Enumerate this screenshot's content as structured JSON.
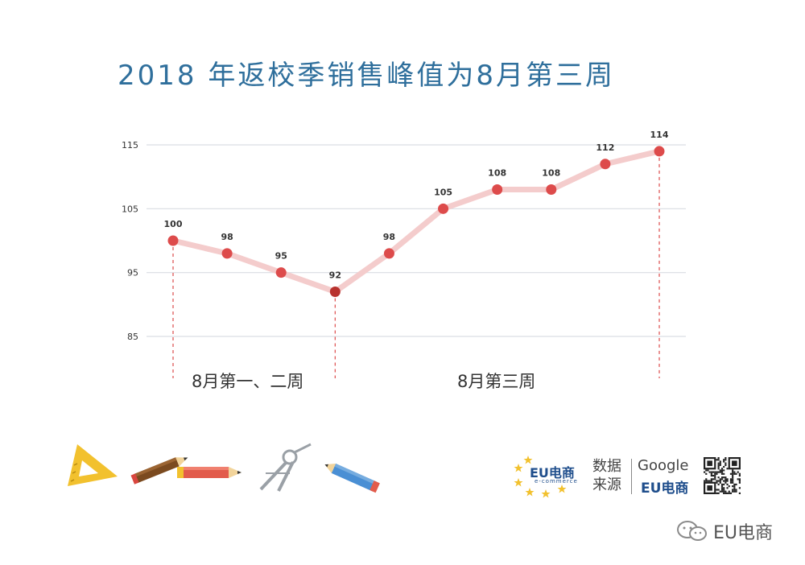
{
  "chart_data": {
    "type": "line",
    "title": "2018 年返校季销售峰值为8月第三周",
    "xlabel": "",
    "ylabel": "",
    "x": [
      1,
      2,
      3,
      4,
      5,
      6,
      7,
      8,
      9,
      10
    ],
    "series": [
      {
        "values": [
          100,
          98,
          95,
          92,
          98,
          105,
          108,
          108,
          112,
          114
        ]
      }
    ],
    "ylim": [
      85,
      115
    ],
    "yticks": [
      85,
      95,
      105,
      115
    ],
    "grid": true,
    "legend": "none",
    "data_labels": [
      "100",
      "98",
      "95",
      "92",
      "98",
      "105",
      "108",
      "108",
      "112",
      "114"
    ],
    "range_labels": [
      "8月第一、二周",
      "8月第三周"
    ],
    "colors": {
      "line": "#f4cccc",
      "point": "#dd4b4b",
      "low_point": "#b8322e",
      "grid": "#d9dde3",
      "title": "#2f6f9c",
      "marker_line": "#dd4b4b"
    }
  },
  "footer": {
    "eu_logo_text": "EU电商",
    "eu_logo_sub": "e-commerce",
    "source_label": "数据来源",
    "source_google": "Google",
    "source_eu": "EU电商",
    "wechat_name": "EU电商"
  }
}
